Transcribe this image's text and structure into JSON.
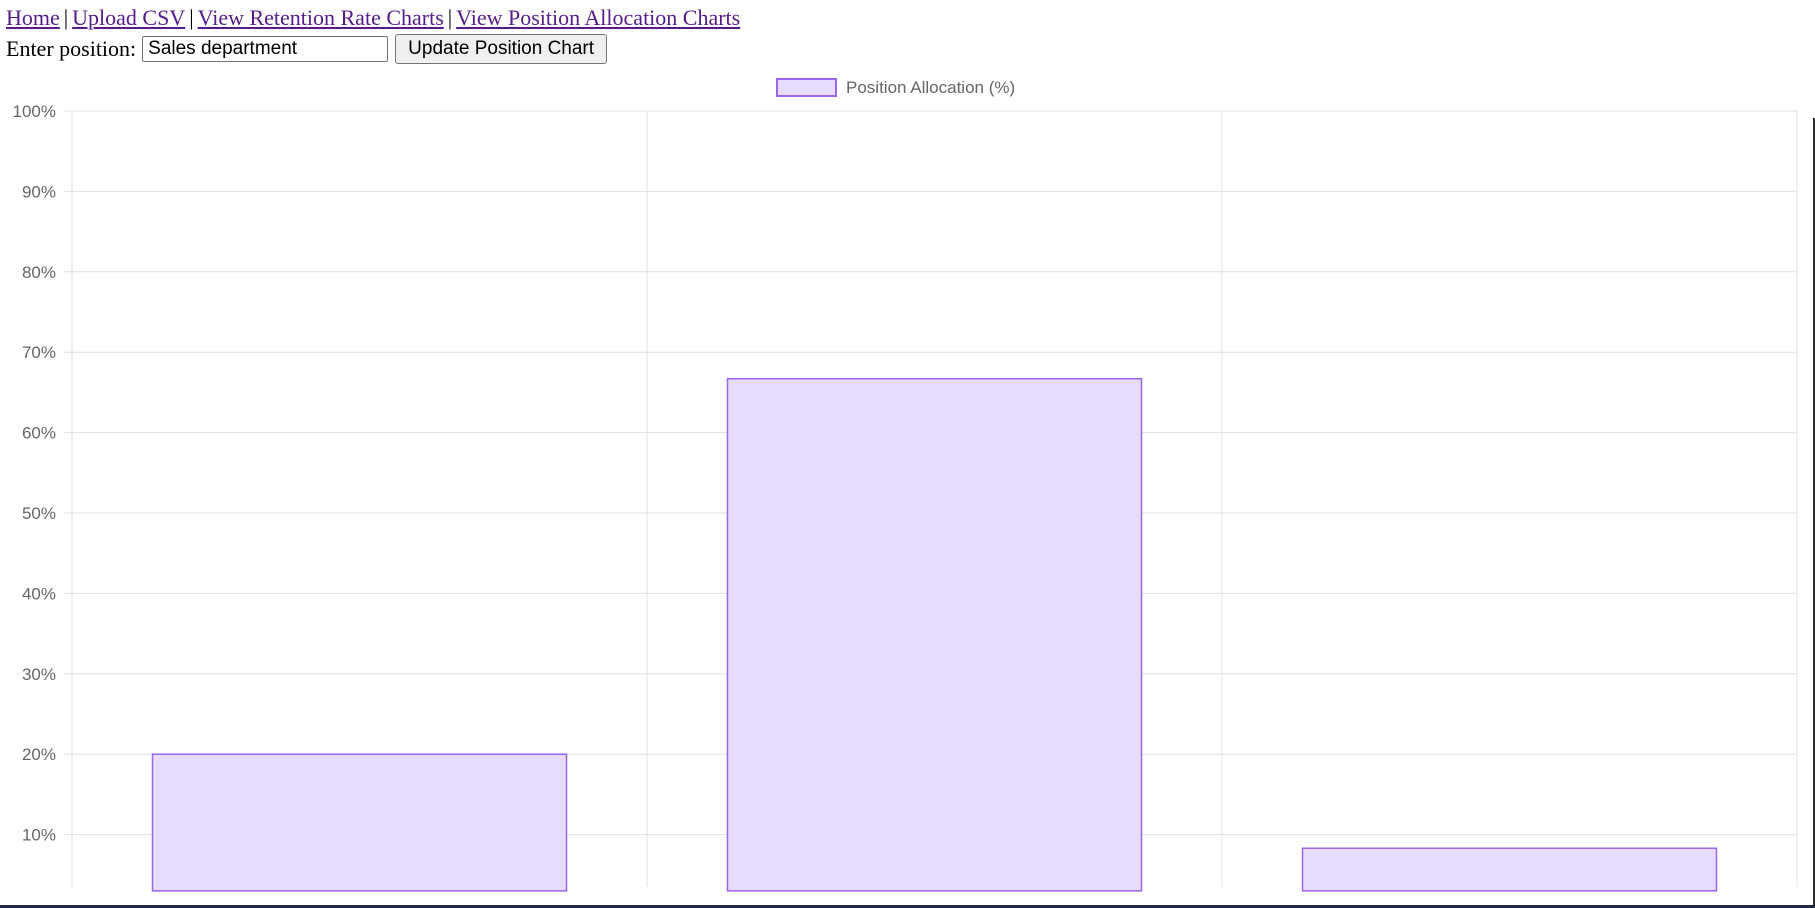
{
  "nav": {
    "links": [
      "Home",
      "Upload CSV",
      "View Retention Rate Charts",
      "View Position Allocation Charts"
    ],
    "separator": "|"
  },
  "form": {
    "label": "Enter position:",
    "input_value": "Sales department",
    "button_label": "Update Position Chart"
  },
  "colors": {
    "bar_fill": "#e7dcfd",
    "bar_border": "#9a66f0",
    "grid": "#e0e0e0",
    "tick_text": "#666666",
    "link": "#551a8b"
  },
  "chart_data": {
    "type": "bar",
    "legend": {
      "label": "Position Allocation (%)",
      "position": "top-center"
    },
    "categories": [
      "",
      "",
      ""
    ],
    "series": [
      {
        "name": "Position Allocation (%)",
        "values": [
          20,
          66.7,
          8.3
        ]
      }
    ],
    "ylim": [
      0,
      100
    ],
    "y_tick_step": 10,
    "y_tick_suffix": "%",
    "grid": true,
    "visible_y_min": 3.5
  }
}
